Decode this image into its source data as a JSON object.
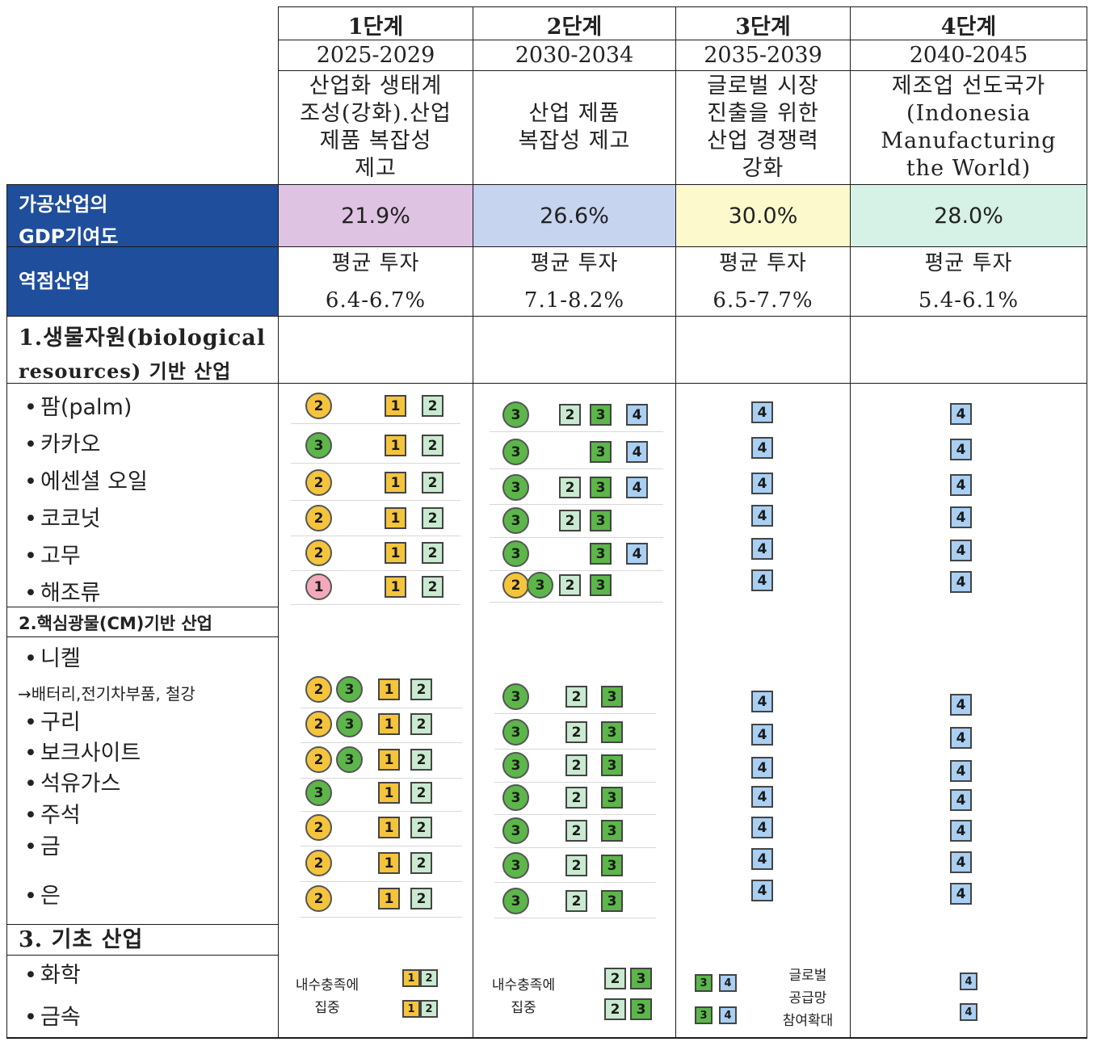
{
  "colors": {
    "gdp_fills": [
      "#dfc3e2",
      "#c6d4f0",
      "#fcfacd",
      "#d6f1e6"
    ],
    "label_fill": "#1f4e9c",
    "stage_colors": {
      "1": "#f3a9bc",
      "2": "#f5c43d",
      "3": "#5cb64a",
      "4": "#a9cff2"
    },
    "square_colors": {
      "1": "#f5c43d",
      "2": "#c9ead0",
      "3": "#5cb64a",
      "4": "#a9cff2"
    }
  },
  "header": {
    "stages": [
      {
        "stage": "1단계",
        "years": "2025-2029",
        "goal": [
          "산업화 생태계",
          "조성(강화).산업",
          "제품 복잡성",
          "제고"
        ]
      },
      {
        "stage": "2단계",
        "years": "2030-2034",
        "goal": [
          "산업 제품",
          "복잡성 제고"
        ]
      },
      {
        "stage": "3단계",
        "years": "2035-2039",
        "goal": [
          "글로벌 시장",
          "진출을 위한",
          "산업 경쟁력",
          "강화"
        ]
      },
      {
        "stage": "4단계",
        "years": "2040-2045",
        "goal": [
          "제조업 선도국가",
          "(Indonesia",
          "Manufacturing",
          "the World)"
        ]
      }
    ]
  },
  "gdp_row": {
    "label_line1": "가공산업의",
    "label_line2": "GDP기여도",
    "values": [
      "21.9%",
      "26.6%",
      "30.0%",
      "28.0%"
    ]
  },
  "invest_row": {
    "label": "역점산업",
    "prefix": "평균 투자",
    "values": [
      "6.4-6.7%",
      "7.1-8.2%",
      "6.5-7.7%",
      "5.4-6.1%"
    ]
  },
  "sections": [
    {
      "title_line1": "1.생물자원(biological",
      "title_line2": "resources) 기반 산업",
      "items": [
        "팜(palm)",
        "카카오",
        "에센셜 오일",
        "코코넛",
        "고무",
        "해조류"
      ]
    },
    {
      "title": "2.핵심광물(CM)기반 산업",
      "items": [
        "니켈",
        "구리",
        "보크사이트",
        "석유가스",
        "주석",
        "금",
        "은"
      ],
      "sub_note": "→배터리,전기차부품, 철강"
    },
    {
      "title": "3. 기초 산업",
      "items": [
        "화학",
        "금속"
      ]
    }
  ],
  "bullet": "•",
  "badge_rows": {
    "bio": [
      {
        "c1": [
          "2"
        ],
        "s1": [
          "1",
          "2"
        ],
        "c2": [
          "3"
        ],
        "s2": [
          "2",
          "3",
          "4"
        ],
        "s3": [
          "4"
        ],
        "s4": [
          "4"
        ]
      },
      {
        "c1": [
          "3"
        ],
        "s1": [
          "1",
          "2"
        ],
        "c2": [
          "3"
        ],
        "s2": [
          "3",
          "4"
        ],
        "s3": [
          "4"
        ],
        "s4": [
          "4"
        ]
      },
      {
        "c1": [
          "2"
        ],
        "s1": [
          "1",
          "2"
        ],
        "c2": [
          "3"
        ],
        "s2": [
          "2",
          "3",
          "4"
        ],
        "s3": [
          "4"
        ],
        "s4": [
          "4"
        ]
      },
      {
        "c1": [
          "2"
        ],
        "s1": [
          "1",
          "2"
        ],
        "c2": [
          "3"
        ],
        "s2": [
          "2",
          "3"
        ],
        "s3": [
          "4"
        ],
        "s4": [
          "4"
        ]
      },
      {
        "c1": [
          "2"
        ],
        "s1": [
          "1",
          "2"
        ],
        "c2": [
          "3"
        ],
        "s2": [
          "3",
          "4"
        ],
        "s3": [
          "4"
        ],
        "s4": [
          "4"
        ]
      },
      {
        "c1": [
          "1"
        ],
        "s1": [
          "1",
          "2"
        ],
        "c2": [
          "2",
          "3"
        ],
        "s2": [
          "2",
          "3"
        ],
        "s3": [
          "4"
        ],
        "s4": [
          "4"
        ]
      }
    ],
    "cm": [
      {
        "c1": [
          "2",
          "3"
        ],
        "s1": [
          "1",
          "2"
        ],
        "c2": [
          "3"
        ],
        "s2": [
          "2",
          "3"
        ],
        "s3": [
          "4"
        ],
        "s4": [
          "4"
        ]
      },
      {
        "c1": [
          "2",
          "3"
        ],
        "s1": [
          "1",
          "2"
        ],
        "c2": [
          "3"
        ],
        "s2": [
          "2",
          "3"
        ],
        "s3": [
          "4"
        ],
        "s4": [
          "4"
        ]
      },
      {
        "c1": [
          "2",
          "3"
        ],
        "s1": [
          "1",
          "2"
        ],
        "c2": [
          "3"
        ],
        "s2": [
          "2",
          "3"
        ],
        "s3": [
          "4"
        ],
        "s4": [
          "4"
        ]
      },
      {
        "c1": [
          "3"
        ],
        "s1": [
          "1",
          "2"
        ],
        "c2": [
          "3"
        ],
        "s2": [
          "2",
          "3"
        ],
        "s3": [
          "4"
        ],
        "s4": [
          "4"
        ]
      },
      {
        "c1": [
          "2"
        ],
        "s1": [
          "1",
          "2"
        ],
        "c2": [
          "3"
        ],
        "s2": [
          "2",
          "3"
        ],
        "s3": [
          "4"
        ],
        "s4": [
          "4"
        ]
      },
      {
        "c1": [
          "2"
        ],
        "s1": [
          "1",
          "2"
        ],
        "c2": [
          "3"
        ],
        "s2": [
          "2",
          "3"
        ],
        "s3": [
          "4"
        ],
        "s4": [
          "4"
        ]
      },
      {
        "c1": [
          "2"
        ],
        "s1": [
          "1",
          "2"
        ],
        "c2": [
          "3"
        ],
        "s2": [
          "2",
          "3"
        ],
        "s3": [
          "4"
        ],
        "s4": [
          "4"
        ]
      }
    ]
  },
  "basic": {
    "note_domestic_line1": "내수충족에",
    "note_domestic_line2": "집중",
    "note_global_line1": "글로벌",
    "note_global_line2": "공급망",
    "note_global_line3": "참여확대",
    "stage1_squares": [
      "1",
      "2"
    ],
    "stage2_squares": [
      "2",
      "3"
    ],
    "stage3_squares": [
      "3",
      "4"
    ],
    "stage4_squares": [
      "4"
    ]
  }
}
